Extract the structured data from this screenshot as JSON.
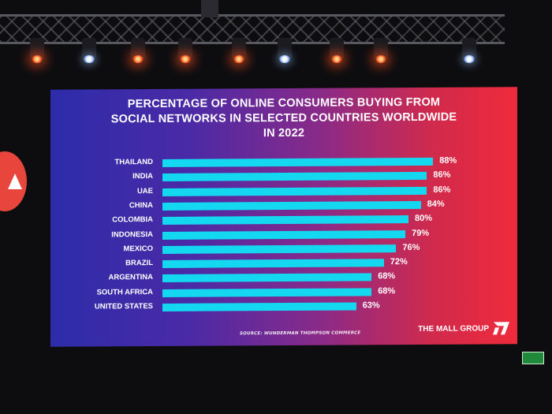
{
  "chart_data": {
    "type": "bar",
    "orientation": "horizontal",
    "title_lines": [
      "PERCENTAGE OF ONLINE CONSUMERS BUYING FROM",
      "SOCIAL NETWORKS IN SELECTED COUNTRIES WORLDWIDE",
      "IN 2022"
    ],
    "categories": [
      "THAILAND",
      "INDIA",
      "UAE",
      "CHINA",
      "COLOMBIA",
      "INDONESIA",
      "MEXICO",
      "BRAZIL",
      "ARGENTINA",
      "SOUTH AFRICA",
      "UNITED STATES"
    ],
    "values": [
      88,
      86,
      86,
      84,
      80,
      79,
      76,
      72,
      68,
      68,
      63
    ],
    "value_labels": [
      "88%",
      "86%",
      "86%",
      "84%",
      "80%",
      "79%",
      "76%",
      "72%",
      "68%",
      "68%",
      "63%"
    ],
    "xlim": [
      0,
      100
    ],
    "bar_color": "#14d8f0",
    "grid": false,
    "legend": "none"
  },
  "source_text": "SOURCE: WUNDERMAN THOMPSON COMMERCE",
  "brand": "THE MALL GROUP",
  "colors": {
    "background_left": "#2c2caa",
    "background_right": "#ef2b3b",
    "text": "#ffffff"
  }
}
